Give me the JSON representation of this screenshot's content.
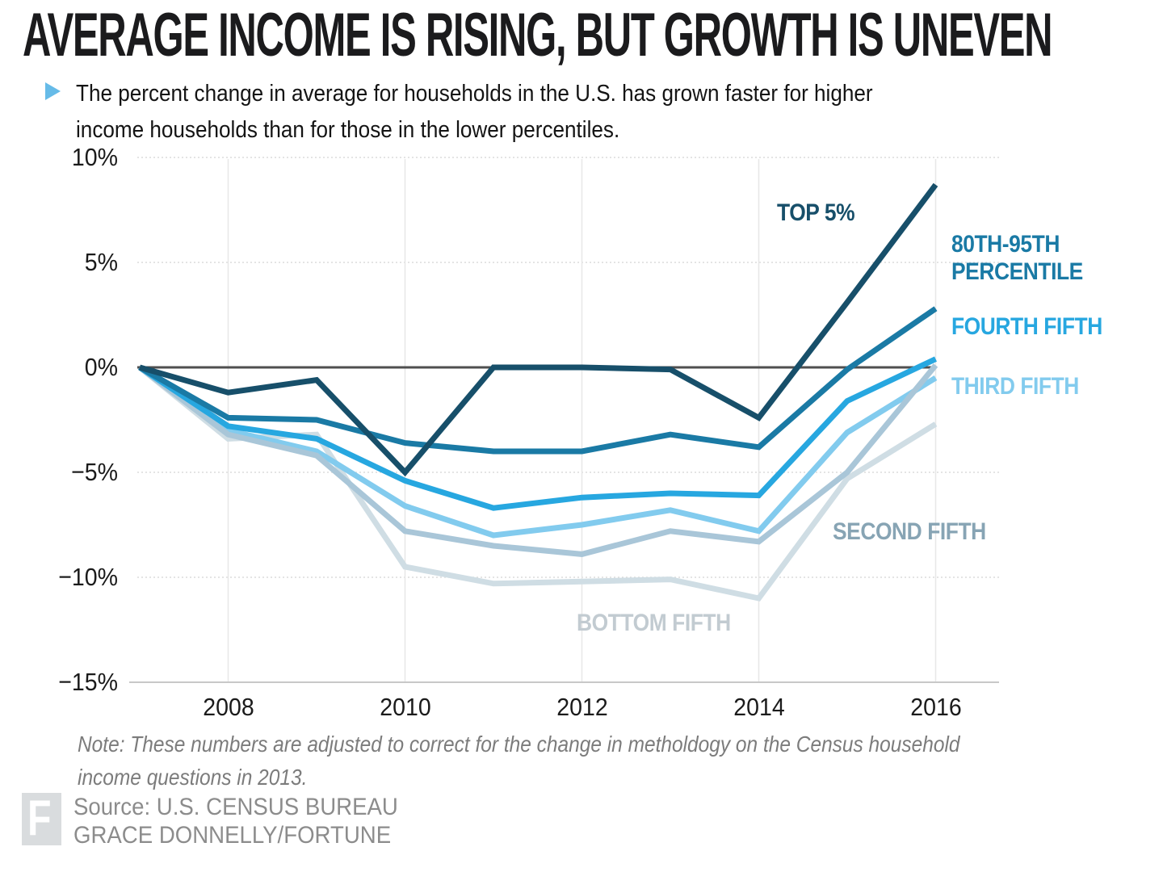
{
  "header": {
    "title": "AVERAGE INCOME IS RISING, BUT GROWTH IS UNEVEN",
    "bullet_icon": "play-triangle",
    "subtitle_line1": "The percent change in average for households in the U.S. has grown faster for higher",
    "subtitle_line2": "income households than for those in the lower percentiles."
  },
  "chart_data": {
    "type": "line",
    "title": "AVERAGE INCOME IS RISING, BUT GROWTH IS UNEVEN",
    "xlabel": "",
    "ylabel": "",
    "x": [
      2007,
      2008,
      2009,
      2010,
      2011,
      2012,
      2013,
      2014,
      2015,
      2016
    ],
    "xlim": [
      2007,
      2016.7
    ],
    "ylim": [
      -15,
      10
    ],
    "grid": true,
    "legend_position": "direct-line-labels",
    "y_ticks": [
      {
        "label": "10%",
        "value": 10
      },
      {
        "label": "5%",
        "value": 5
      },
      {
        "label": "0%",
        "value": 0
      },
      {
        "label": "−5%",
        "value": -5
      },
      {
        "label": "−10%",
        "value": -10
      },
      {
        "label": "−15%",
        "value": -15
      }
    ],
    "x_ticks": [
      {
        "label": "2008",
        "year": 2008
      },
      {
        "label": "2010",
        "year": 2010
      },
      {
        "label": "2012",
        "year": 2012
      },
      {
        "label": "2014",
        "year": 2014
      },
      {
        "label": "2016",
        "year": 2016
      }
    ],
    "series": [
      {
        "name": "TOP 5%",
        "color": "#174f6a",
        "values": [
          0,
          -1.2,
          -0.6,
          -5.0,
          0.0,
          0.0,
          -0.1,
          -2.4,
          3.1,
          8.7
        ]
      },
      {
        "name": "80TH-95TH PERCENTILE",
        "label_lines": [
          "80TH-95TH",
          "PERCENTILE"
        ],
        "color": "#1a7aa5",
        "values": [
          0,
          -2.4,
          -2.5,
          -3.6,
          -4.0,
          -4.0,
          -3.2,
          -3.8,
          -0.1,
          2.8
        ]
      },
      {
        "name": "FOURTH FIFTH",
        "color": "#27a7e0",
        "values": [
          0,
          -2.8,
          -3.4,
          -5.4,
          -6.7,
          -6.2,
          -6.0,
          -6.1,
          -1.6,
          0.4
        ]
      },
      {
        "name": "THIRD FIFTH",
        "color": "#82cbee",
        "values": [
          0,
          -3.0,
          -4.0,
          -6.6,
          -8.0,
          -7.5,
          -6.8,
          -7.8,
          -3.1,
          -0.5
        ]
      },
      {
        "name": "SECOND FIFTH",
        "color": "#a9c6d8",
        "label_color": "#87a4b4",
        "values": [
          0,
          -3.2,
          -4.2,
          -7.8,
          -8.5,
          -8.9,
          -7.8,
          -8.3,
          -5.0,
          0.1
        ]
      },
      {
        "name": "BOTTOM FIFTH",
        "color": "#cfdde4",
        "label_color": "#c2cbd1",
        "values": [
          0,
          -3.4,
          -3.2,
          -9.5,
          -10.3,
          -10.2,
          -10.1,
          -11.0,
          -5.3,
          -2.7
        ]
      }
    ],
    "colors": {
      "grid": "#dcdcdc",
      "vertical_grid": "#e7e7e7",
      "zero_line": "#4f4f4f",
      "axis_line": "#c8c8c8"
    }
  },
  "note": {
    "line1": "Note: These numbers are adjusted to correct for the change in metholdogy on the Census household",
    "line2": "income questions in 2013."
  },
  "footer": {
    "logo_letter": "F",
    "source_line1": "Source: U.S. CENSUS BUREAU",
    "source_line2": "GRACE DONNELLY/FORTUNE"
  }
}
